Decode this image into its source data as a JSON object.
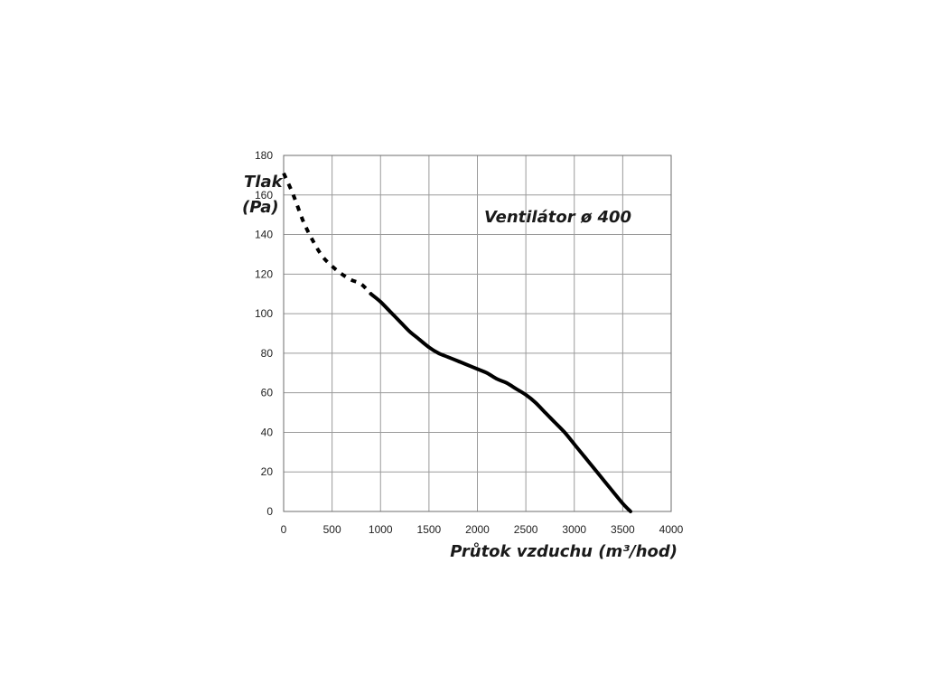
{
  "chart_data": {
    "type": "line",
    "title": "Ventilátor ø 400",
    "xlabel": "Průtok vzduchu (m³/hod)",
    "ylabel_line1": "Tlak",
    "ylabel_line2": "(Pa)",
    "xlim": [
      0,
      4000
    ],
    "ylim": [
      0,
      180
    ],
    "x_ticks": [
      0,
      500,
      1000,
      1500,
      2000,
      2500,
      3000,
      3500,
      4000
    ],
    "y_ticks": [
      0,
      20,
      40,
      60,
      80,
      100,
      120,
      140,
      160,
      180
    ],
    "x_tick_labels": [
      "0",
      "500",
      "1000",
      "1500",
      "2000",
      "2500",
      "3000",
      "3500",
      "4000"
    ],
    "y_tick_labels": [
      "0",
      "20",
      "40",
      "60",
      "80",
      "100",
      "120",
      "140",
      "160",
      "180"
    ],
    "grid": true,
    "series": [
      {
        "style": "dashed",
        "x": [
          0,
          100,
          200,
          300,
          400,
          500,
          600,
          700,
          800,
          900
        ],
        "y": [
          171,
          160,
          147,
          137,
          129,
          124,
          120,
          117,
          115,
          110
        ]
      },
      {
        "style": "solid",
        "x": [
          900,
          1000,
          1100,
          1200,
          1300,
          1400,
          1500,
          1600,
          1700,
          1800,
          1900,
          2000,
          2100,
          2200,
          2300,
          2400,
          2500,
          2600,
          2700,
          2800,
          2900,
          3000,
          3100,
          3200,
          3300,
          3400,
          3500,
          3580
        ],
        "y": [
          110,
          106,
          101,
          96,
          91,
          87,
          83,
          80,
          78,
          76,
          74,
          72,
          70,
          67,
          65,
          62,
          59,
          55,
          50,
          45,
          40,
          34,
          28,
          22,
          16,
          10,
          4,
          0
        ]
      }
    ]
  }
}
